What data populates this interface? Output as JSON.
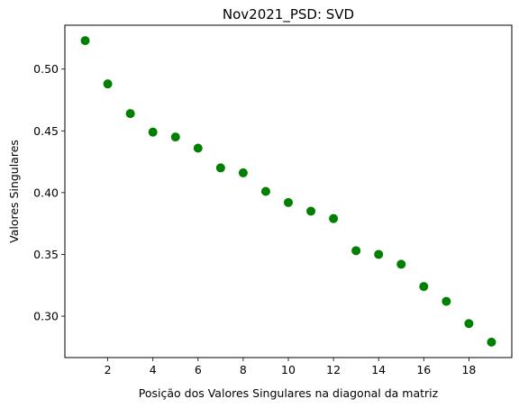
{
  "chart_data": {
    "type": "scatter",
    "title": "Nov2021_PSD: SVD",
    "xlabel": "Posição dos Valores Singulares na diagonal da matriz",
    "ylabel": "Valores Singulares",
    "xlim": [
      0.1,
      19.9
    ],
    "ylim": [
      0.2665,
      0.5355
    ],
    "x_ticks": [
      2,
      4,
      6,
      8,
      10,
      12,
      14,
      16,
      18
    ],
    "y_ticks": [
      0.3,
      0.35,
      0.4,
      0.45,
      0.5
    ],
    "x_tick_labels": [
      "2",
      "4",
      "6",
      "8",
      "10",
      "12",
      "14",
      "16",
      "18"
    ],
    "y_tick_labels": [
      "0.30",
      "0.35",
      "0.40",
      "0.45",
      "0.50"
    ],
    "marker_color": "#008000",
    "grid": false,
    "legend": "none",
    "series": [
      {
        "x": [
          1,
          2,
          3,
          4,
          5,
          6,
          7,
          8,
          9,
          10,
          11,
          12,
          13,
          14,
          15,
          16,
          17,
          18,
          19
        ],
        "y": [
          0.523,
          0.488,
          0.464,
          0.449,
          0.445,
          0.436,
          0.42,
          0.416,
          0.401,
          0.392,
          0.385,
          0.379,
          0.353,
          0.35,
          0.342,
          0.324,
          0.312,
          0.294,
          0.279
        ]
      }
    ]
  }
}
